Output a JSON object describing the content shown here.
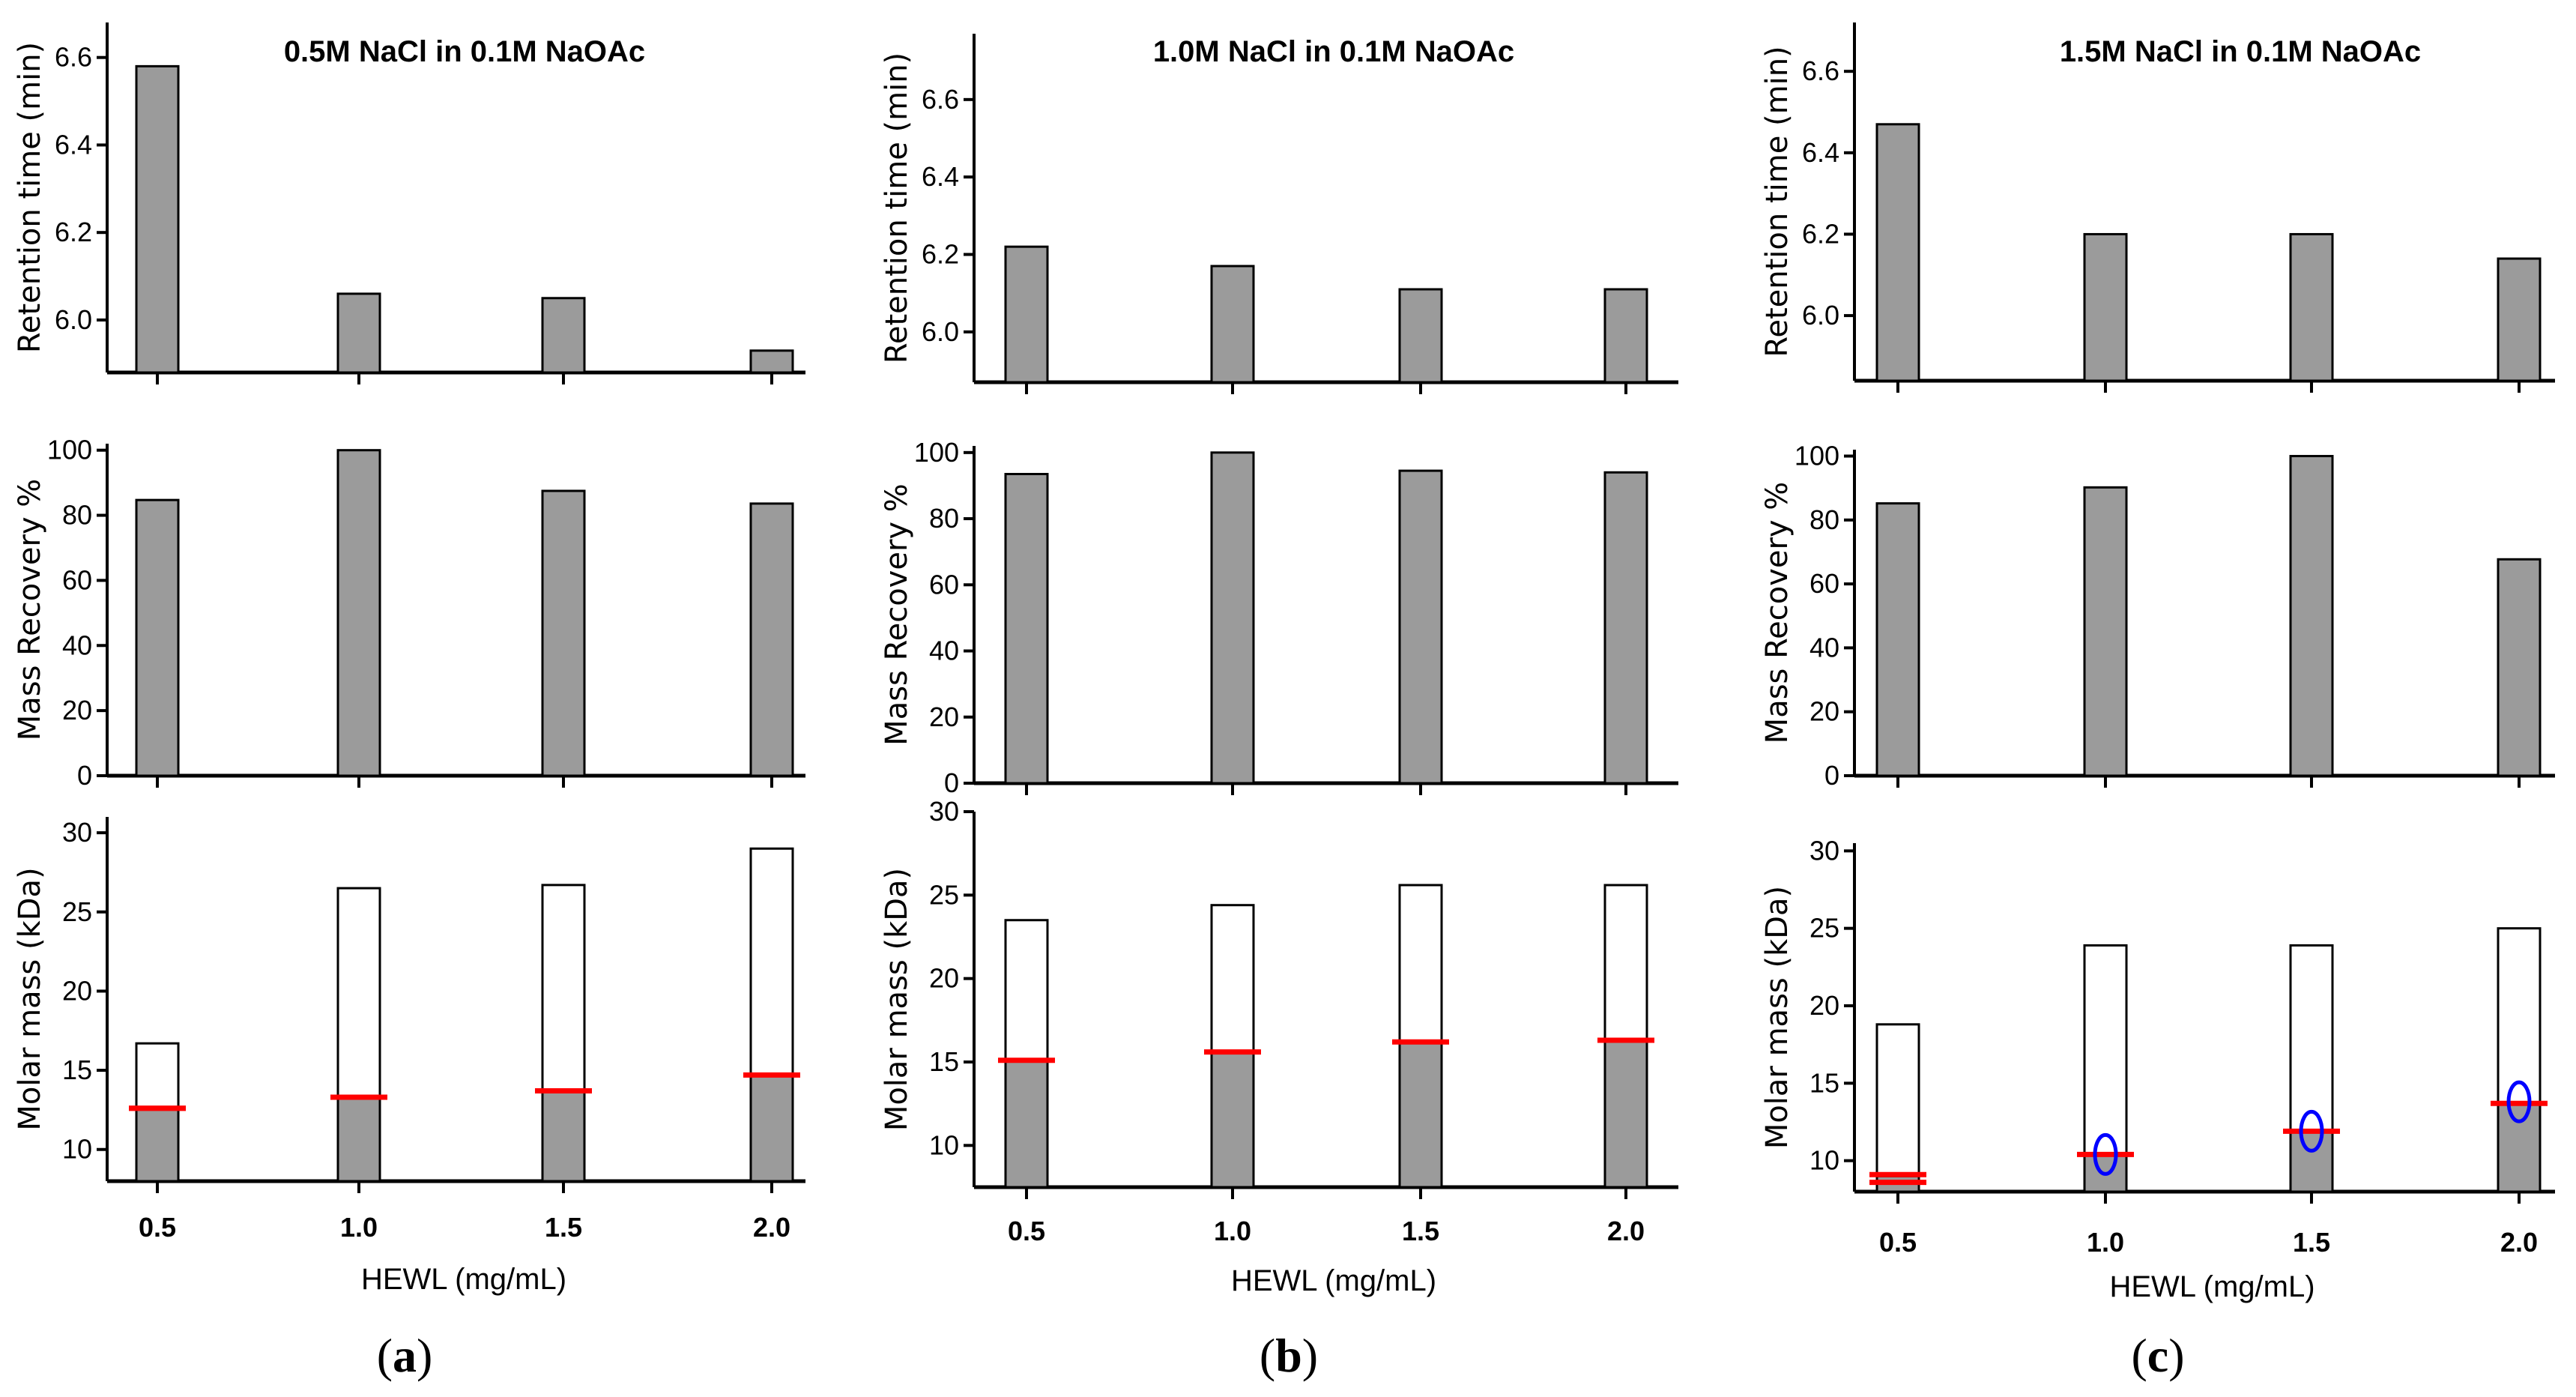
{
  "chart_data": [
    {
      "type": "bar",
      "panel_label": "(a)",
      "title": "0.5M NaCl in 0.1M NaOAc",
      "categories": [
        "0.5",
        "1.0",
        "1.5",
        "2.0"
      ],
      "xlabel": "HEWL (mg/mL)",
      "rows": [
        {
          "ylabel": "Retention time (min)",
          "ylim": [
            5.88,
            6.68
          ],
          "yticks": [
            "6.0",
            "6.2",
            "6.4",
            "6.6"
          ],
          "values": [
            6.58,
            6.06,
            6.05,
            5.93
          ]
        },
        {
          "ylabel": "Mass Recovery %",
          "ylim": [
            0,
            102
          ],
          "yticks": [
            "0",
            "20",
            "40",
            "60",
            "80",
            "100"
          ],
          "values": [
            84.7,
            100.0,
            87.5,
            83.6
          ]
        },
        {
          "ylabel": "Molar mass (kDa)",
          "ylim": [
            8,
            31
          ],
          "yticks": [
            "10",
            "15",
            "20",
            "25",
            "30"
          ],
          "values": [
            16.7,
            26.5,
            26.7,
            29.0
          ],
          "filled": [
            12.6,
            13.3,
            13.7,
            14.7
          ],
          "red_lines": [
            [
              12.6,
              12.6
            ],
            [
              13.3
            ],
            [
              13.7
            ],
            [
              14.7
            ]
          ],
          "circles": []
        }
      ]
    },
    {
      "type": "bar",
      "panel_label": "(b)",
      "title": "1.0M NaCl in 0.1M NaOAc",
      "categories": [
        "0.5",
        "1.0",
        "1.5",
        "2.0"
      ],
      "xlabel": "HEWL (mg/mL)",
      "rows": [
        {
          "ylabel": "Retention time (min)",
          "ylim": [
            5.87,
            6.77
          ],
          "yticks": [
            "6.0",
            "6.2",
            "6.4",
            "6.6"
          ],
          "values": [
            6.22,
            6.17,
            6.11,
            6.11
          ]
        },
        {
          "ylabel": "Mass Recovery %",
          "ylim": [
            0,
            102
          ],
          "yticks": [
            "0",
            "20",
            "40",
            "60",
            "80",
            "100"
          ],
          "values": [
            93.5,
            100.0,
            94.5,
            94.0
          ]
        },
        {
          "ylabel": "Molar mass (kDa)",
          "ylim": [
            7.5,
            30
          ],
          "yticks": [
            "10",
            "15",
            "20",
            "25",
            "30"
          ],
          "values": [
            23.5,
            24.4,
            25.6,
            25.6
          ],
          "filled": [
            15.1,
            15.6,
            16.2,
            16.3
          ],
          "red_lines": [
            [
              15.1
            ],
            [
              15.6
            ],
            [
              16.2
            ],
            [
              16.3
            ]
          ],
          "circles": []
        }
      ]
    },
    {
      "type": "bar",
      "panel_label": "(c)",
      "title": "1.5M NaCl in 0.1M NaOAc",
      "categories": [
        "0.5",
        "1.0",
        "1.5",
        "2.0"
      ],
      "xlabel": "HEWL (mg/mL)",
      "rows": [
        {
          "ylabel": "Retention time (min)",
          "ylim": [
            5.84,
            6.72
          ],
          "yticks": [
            "6.0",
            "6.2",
            "6.4",
            "6.6"
          ],
          "values": [
            6.47,
            6.2,
            6.2,
            6.14
          ]
        },
        {
          "ylabel": "Mass Recovery %",
          "ylim": [
            0,
            102
          ],
          "yticks": [
            "0",
            "20",
            "40",
            "60",
            "80",
            "100"
          ],
          "values": [
            85.2,
            90.2,
            100.0,
            67.7
          ]
        },
        {
          "ylabel": "Molar mass (kDa)",
          "ylim": [
            8,
            30.5
          ],
          "yticks": [
            "10",
            "15",
            "20",
            "25",
            "30"
          ],
          "values": [
            18.8,
            23.9,
            23.9,
            25.0
          ],
          "filled": [
            9.0,
            10.4,
            11.9,
            13.7
          ],
          "red_lines": [
            [
              8.6,
              9.1
            ],
            [
              10.4
            ],
            [
              11.9
            ],
            [
              13.7
            ]
          ],
          "circles": [
            null,
            10.4,
            11.9,
            13.8
          ]
        }
      ]
    }
  ],
  "colors": {
    "bar_fill": "#9b9b9b",
    "bar_stroke": "#000000",
    "red_line": "#ff0000",
    "circle": "#0000ff",
    "background": "#ffffff"
  }
}
